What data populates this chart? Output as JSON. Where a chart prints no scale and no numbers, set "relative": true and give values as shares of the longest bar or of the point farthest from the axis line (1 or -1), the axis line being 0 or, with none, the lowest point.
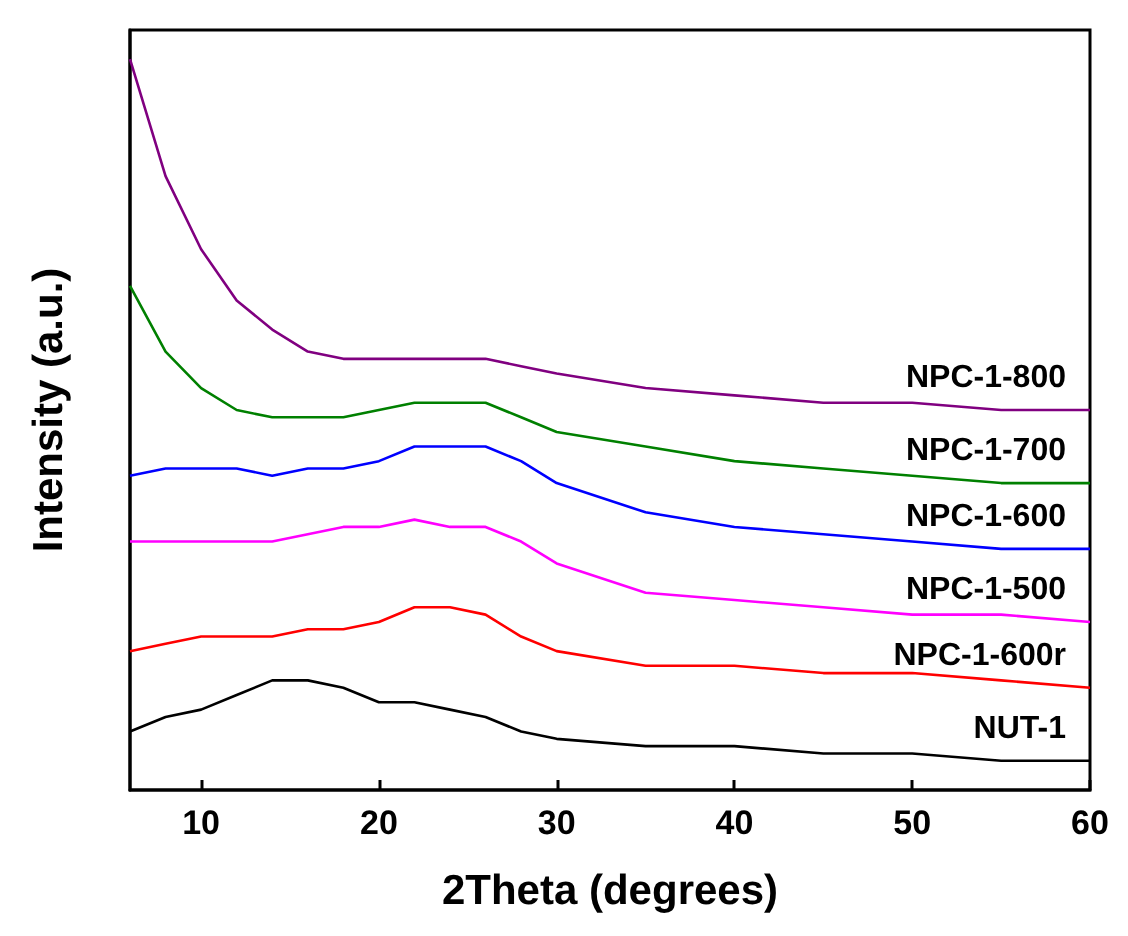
{
  "chart_data": {
    "type": "line",
    "xlabel": "2Theta (degrees)",
    "ylabel": "Intensity (a.u.)",
    "relative": true,
    "marker": "none",
    "x": [
      6,
      8,
      10,
      12,
      14,
      16,
      18,
      20,
      22,
      24,
      26,
      28,
      30,
      35,
      40,
      45,
      50,
      55,
      60
    ],
    "xlim": [
      6,
      60
    ],
    "xticks": [
      10,
      20,
      30,
      40,
      50,
      60
    ],
    "series": [
      {
        "name": "NPC-1-800",
        "color": "#800080",
        "values": [
          1.0,
          0.84,
          0.74,
          0.67,
          0.63,
          0.6,
          0.59,
          0.59,
          0.59,
          0.59,
          0.59,
          0.58,
          0.57,
          0.55,
          0.54,
          0.53,
          0.53,
          0.52,
          0.52
        ]
      },
      {
        "name": "NPC-1-700",
        "color": "#008000",
        "values": [
          0.69,
          0.6,
          0.55,
          0.52,
          0.51,
          0.51,
          0.51,
          0.52,
          0.53,
          0.53,
          0.53,
          0.51,
          0.49,
          0.47,
          0.45,
          0.44,
          0.43,
          0.42,
          0.42
        ]
      },
      {
        "name": "NPC-1-600",
        "color": "#0000ff",
        "values": [
          0.43,
          0.44,
          0.44,
          0.44,
          0.43,
          0.44,
          0.44,
          0.45,
          0.47,
          0.47,
          0.47,
          0.45,
          0.42,
          0.38,
          0.36,
          0.35,
          0.34,
          0.33,
          0.33
        ]
      },
      {
        "name": "NPC-1-500",
        "color": "#ff00ff",
        "values": [
          0.34,
          0.34,
          0.34,
          0.34,
          0.34,
          0.35,
          0.36,
          0.36,
          0.37,
          0.36,
          0.36,
          0.34,
          0.31,
          0.27,
          0.26,
          0.25,
          0.24,
          0.24,
          0.23
        ]
      },
      {
        "name": "NPC-1-600r",
        "color": "#ff0000",
        "values": [
          0.19,
          0.2,
          0.21,
          0.21,
          0.21,
          0.22,
          0.22,
          0.23,
          0.25,
          0.25,
          0.24,
          0.21,
          0.19,
          0.17,
          0.17,
          0.16,
          0.16,
          0.15,
          0.14
        ]
      },
      {
        "name": "NUT-1",
        "color": "#000000",
        "values": [
          0.08,
          0.1,
          0.11,
          0.13,
          0.15,
          0.15,
          0.14,
          0.12,
          0.12,
          0.11,
          0.1,
          0.08,
          0.07,
          0.06,
          0.06,
          0.05,
          0.05,
          0.04,
          0.04
        ]
      }
    ]
  }
}
